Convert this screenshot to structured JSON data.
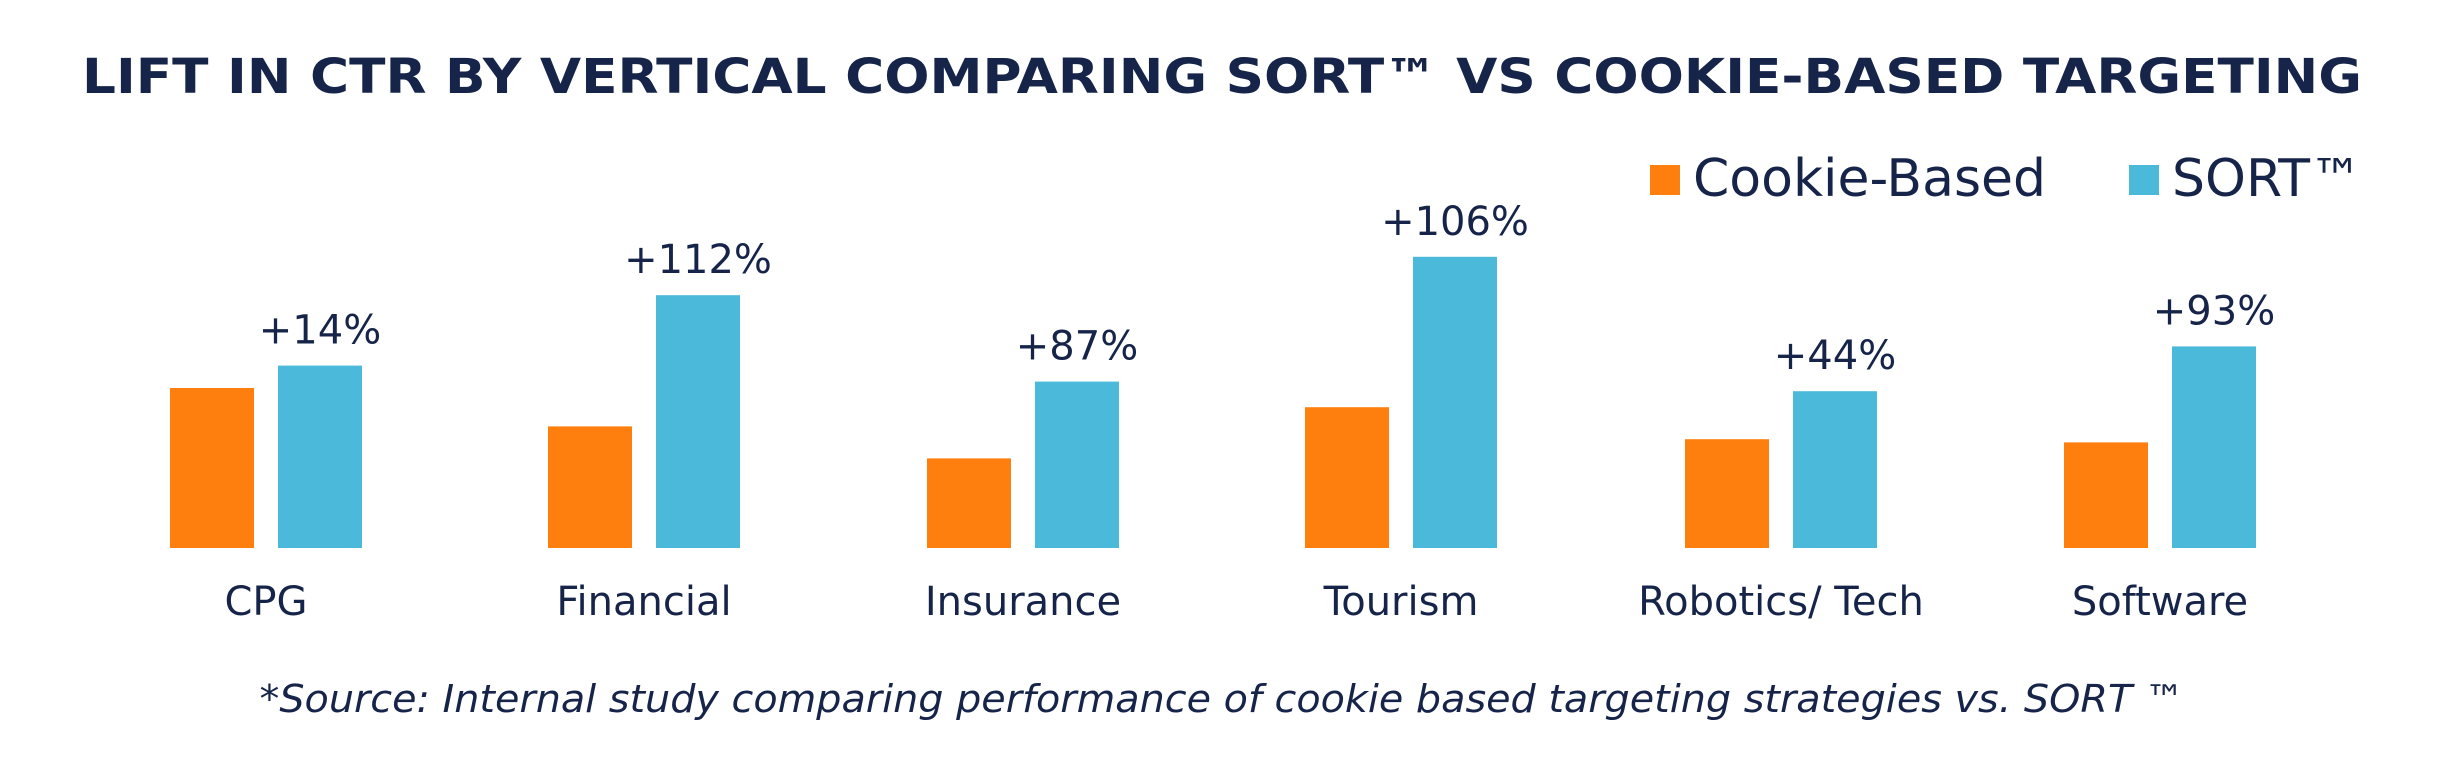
{
  "chart_data": {
    "type": "bar",
    "title": "LIFT IN CTR BY VERTICAL COMPARING SORT™ VS COOKIE-BASED TARGETING",
    "categories": [
      "CPG",
      "Financial",
      "Insurance",
      "Tourism",
      "Robotics/ Tech",
      "Software"
    ],
    "series": [
      {
        "name": "Cookie-Based",
        "color": "#ff7f0e",
        "values": [
          0.5,
          0.38,
          0.28,
          0.44,
          0.34,
          0.33
        ]
      },
      {
        "name": "SORT™",
        "color": "#4bbada",
        "values": [
          0.57,
          0.79,
          0.52,
          0.91,
          0.49,
          0.63
        ]
      }
    ],
    "data_labels": [
      "+14%",
      "+112%",
      "+87%",
      "+106%",
      "+44%",
      "+93%"
    ],
    "legend_position": "top-right",
    "grid": false,
    "xlabel": "",
    "ylabel": "",
    "ylim": [
      0,
      1
    ]
  },
  "footer": {
    "source": "*Source: Internal study comparing performance of cookie based targeting strategies vs. SORT ™"
  }
}
